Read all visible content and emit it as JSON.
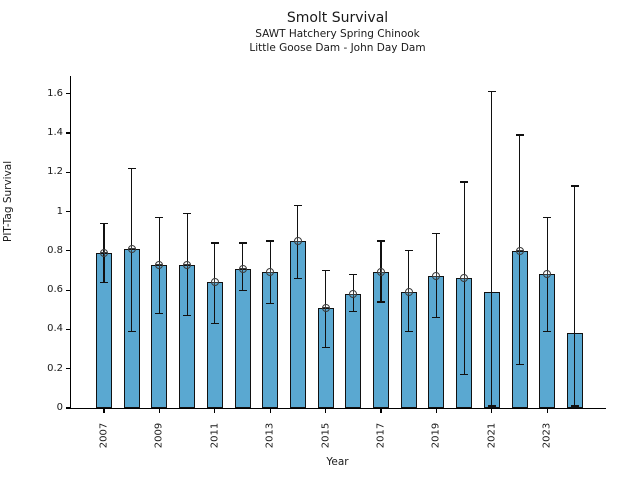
{
  "figure": {
    "title": "Smolt Survival",
    "subtitle1": "SAWT Hatchery Spring Chinook",
    "subtitle2": "Little Goose Dam - John Day Dam"
  },
  "chart_data": {
    "type": "bar",
    "title": "Smolt Survival",
    "subtitle": [
      "SAWT Hatchery Spring Chinook",
      "Little Goose Dam - John Day Dam"
    ],
    "xlabel": "Year",
    "ylabel": "PIT-Tag Survival",
    "ylim": [
      0,
      1.69
    ],
    "grid": false,
    "legend": "none",
    "bar_color": "#5AA8D1",
    "bar_edge_color": "#111111",
    "error_bar_color": "#111111",
    "categories": [
      2007,
      2008,
      2009,
      2010,
      2011,
      2012,
      2013,
      2014,
      2015,
      2016,
      2017,
      2018,
      2019,
      2020,
      2021,
      2022,
      2023,
      2024
    ],
    "values": [
      0.79,
      0.81,
      0.73,
      0.73,
      0.64,
      0.71,
      0.69,
      0.85,
      0.51,
      0.58,
      0.69,
      0.59,
      0.67,
      0.66,
      0.59,
      0.8,
      0.68,
      0.38
    ],
    "err_low": [
      0.64,
      0.39,
      0.48,
      0.47,
      0.43,
      0.6,
      0.53,
      0.66,
      0.31,
      0.49,
      0.54,
      0.39,
      0.46,
      0.17,
      0.01,
      0.22,
      0.39,
      0.01
    ],
    "err_high": [
      0.94,
      1.22,
      0.97,
      0.99,
      0.84,
      0.84,
      0.85,
      1.03,
      0.7,
      0.68,
      0.85,
      0.8,
      0.89,
      1.15,
      1.61,
      1.39,
      0.97,
      1.13
    ],
    "point_marker": [
      true,
      true,
      true,
      true,
      true,
      true,
      true,
      true,
      true,
      true,
      true,
      true,
      true,
      true,
      false,
      true,
      true,
      false
    ],
    "yticks": [
      0,
      0.2,
      0.4,
      0.6,
      0.8,
      1,
      1.2,
      1.4,
      1.6
    ],
    "ytick_labels": [
      "0",
      "0.2",
      "0.4",
      "0.6",
      "0.8",
      "1",
      "1.2",
      "1.4",
      "1.6"
    ],
    "xticks": [
      2007,
      2009,
      2011,
      2013,
      2015,
      2017,
      2019,
      2021,
      2023
    ],
    "xtick_labels": [
      "2007",
      "2009",
      "2011",
      "2013",
      "2015",
      "2017",
      "2019",
      "2021",
      "2023"
    ]
  }
}
